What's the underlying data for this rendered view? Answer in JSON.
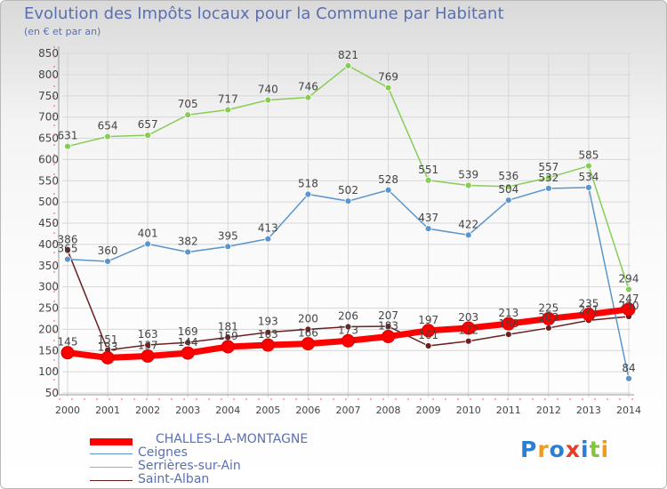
{
  "title": "Evolution des Impôts locaux pour la Commune par Habitant",
  "subtitle": "(en € et par an)",
  "colors": {
    "CHALLES-LA-MONTAGNE": "#ff0000",
    "Ceignes": "#5b95cc",
    "Serrières-sur-Ain": "#88cc55",
    "Saint-Alban": "#6b1f1f",
    "text": "#5b6fb1",
    "grid": "#d7d7d7"
  },
  "chart_data": {
    "type": "line",
    "title": "Evolution des Impôts locaux pour la Commune par Habitant",
    "subtitle": "(en € et par an)",
    "x": [
      2000,
      2001,
      2002,
      2003,
      2004,
      2005,
      2006,
      2007,
      2008,
      2009,
      2010,
      2011,
      2012,
      2013,
      2014
    ],
    "ylim": [
      50,
      850
    ],
    "yticks": [
      50,
      100,
      150,
      200,
      250,
      300,
      350,
      400,
      450,
      500,
      550,
      600,
      650,
      700,
      750,
      800,
      850
    ],
    "grid": true,
    "legend_position": "bottom-left",
    "series": [
      {
        "name": "CHALLES-LA-MONTAGNE",
        "values": [
          145,
          133,
          137,
          144,
          159,
          163,
          166,
          173,
          183,
          197,
          203,
          213,
          225,
          235,
          247
        ]
      },
      {
        "name": "Ceignes",
        "values": [
          365,
          360,
          401,
          382,
          395,
          413,
          518,
          502,
          528,
          437,
          422,
          504,
          532,
          534,
          84
        ]
      },
      {
        "name": "Serrières-sur-Ain",
        "values": [
          631,
          654,
          657,
          705,
          717,
          740,
          746,
          821,
          769,
          551,
          539,
          536,
          557,
          585,
          294
        ]
      },
      {
        "name": "Saint-Alban",
        "values": [
          386,
          151,
          163,
          169,
          181,
          193,
          200,
          206,
          207,
          161,
          172,
          188,
          203,
          221,
          230
        ]
      }
    ]
  },
  "logo": {
    "text": "Proxiti",
    "colors": [
      "#2a7fd4",
      "#f29a19",
      "#2a7fd4",
      "#e63c2a",
      "#2a7fd4",
      "#84c33c",
      "#f29a19"
    ]
  }
}
